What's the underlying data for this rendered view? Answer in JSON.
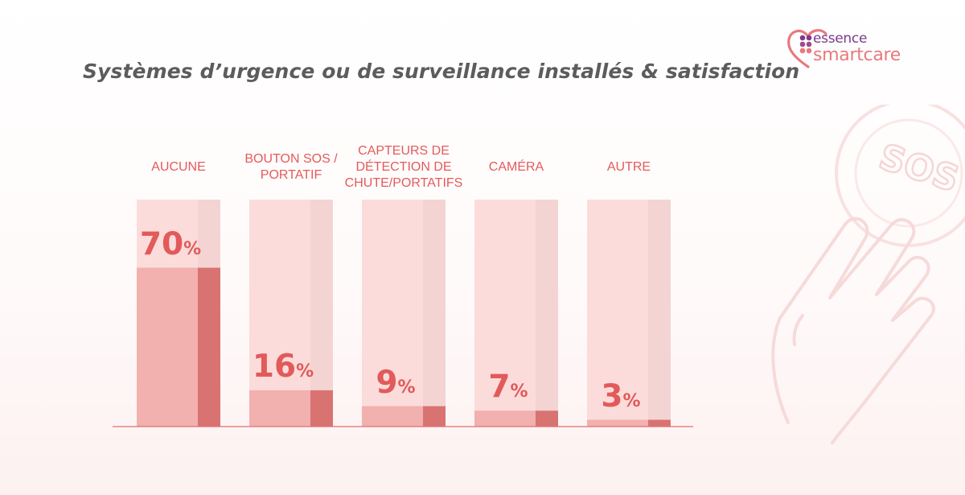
{
  "title": "Systèmes d’urgence ou de surveillance installés & satisfaction",
  "logo": {
    "line1": "essence",
    "line2": "smartcare"
  },
  "colors": {
    "accent": "#e25a5a",
    "bar_bg": "#fbdcdb",
    "bar_bg_side": "#f3d4d3",
    "bar_fill": "#f2b0ae",
    "bar_fill_side": "#d87372",
    "baseline": "#e07070"
  },
  "chart_data": {
    "type": "bar",
    "title": "Systèmes d’urgence ou de surveillance installés & satisfaction",
    "categories": [
      "AUCUNE",
      "BOUTON SOS / PORTATIF",
      "CAPTEURS DE DÉTECTION DE CHUTE/PORTATIFS",
      "CAMÉRA",
      "AUTRE"
    ],
    "category_lines": [
      [
        "AUCUNE"
      ],
      [
        "BOUTON SOS /",
        "PORTATIF"
      ],
      [
        "CAPTEURS DE",
        "DÉTECTION DE",
        "CHUTE/PORTATIFS"
      ],
      [
        "CAMÉRA"
      ],
      [
        "AUTRE"
      ]
    ],
    "values": [
      70,
      16,
      9,
      7,
      3
    ],
    "value_labels": [
      "70",
      "16",
      "9",
      "7",
      "3"
    ],
    "unit": "%",
    "ylim": [
      0,
      100
    ],
    "xlabel": "",
    "ylabel": "",
    "grid": false,
    "legend": "none"
  }
}
